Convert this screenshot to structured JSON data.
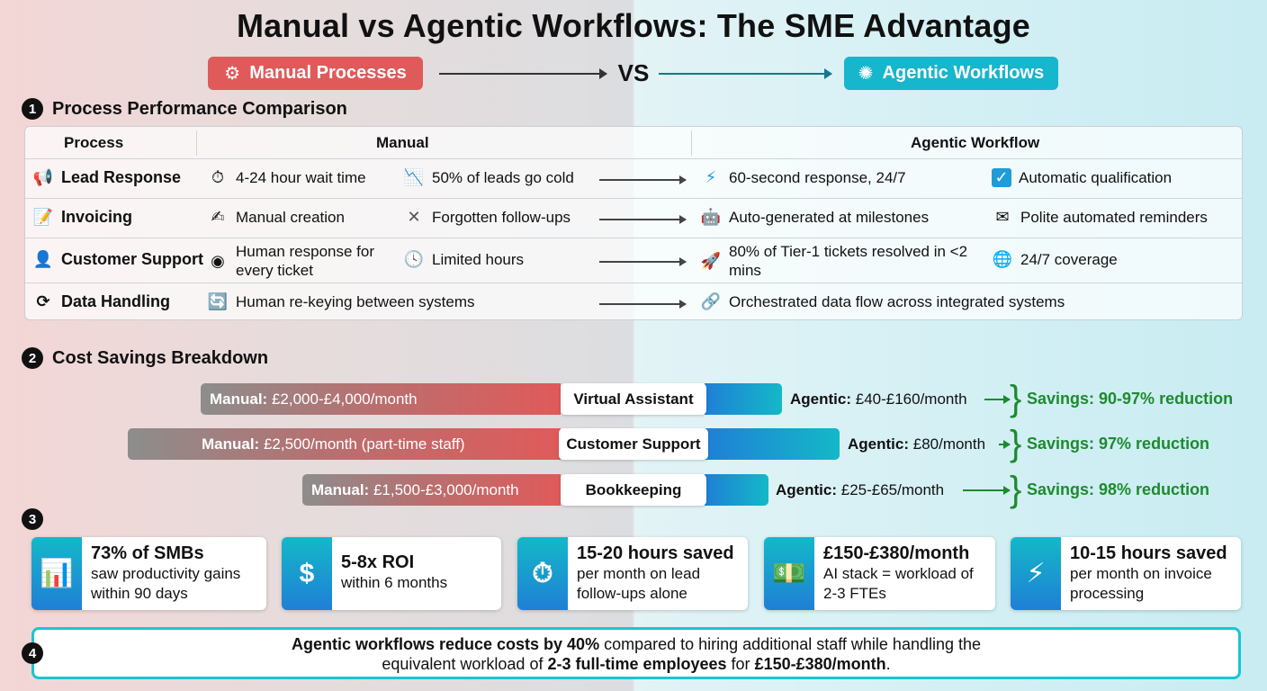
{
  "title": "Manual vs Agentic Workflows: The SME Advantage",
  "header": {
    "manual_label": "Manual Processes",
    "vs": "VS",
    "agentic_label": "Agentic Workflows"
  },
  "section1": {
    "number": "1",
    "title": "Process Performance Comparison",
    "headers": {
      "process": "Process",
      "manual": "Manual",
      "agentic": "Agentic Workflow"
    },
    "rows": [
      {
        "process": "Lead Response",
        "m1": "4-24 hour wait time",
        "m2": "50% of leads go cold",
        "a1": "60-second response, 24/7",
        "a2": "Automatic qualification"
      },
      {
        "process": "Invoicing",
        "m1": "Manual creation",
        "m2": "Forgotten follow-ups",
        "a1": "Auto-generated at milestones",
        "a2": "Polite automated reminders"
      },
      {
        "process": "Customer Support",
        "m1": "Human response for every ticket",
        "m2": "Limited hours",
        "a1": "80% of Tier-1 tickets resolved in <2 mins",
        "a2": "24/7 coverage"
      },
      {
        "process": "Data Handling",
        "m1": "Human re-keying between systems",
        "a1": "Orchestrated data flow across integrated systems"
      }
    ]
  },
  "section2": {
    "number": "2",
    "title": "Cost Savings Breakdown",
    "manual_prefix": "Manual:",
    "agentic_prefix": "Agentic:",
    "rows": [
      {
        "label": "Virtual Assistant",
        "manual": "£2,000-£4,000/month",
        "agentic": "£40-£160/month",
        "savings": "Savings: 90-97% reduction"
      },
      {
        "label": "Customer Support",
        "manual": "£2,500/month (part-time staff)",
        "agentic": "£80/month",
        "savings": "Savings: 97% reduction"
      },
      {
        "label": "Bookkeeping",
        "manual": "£1,500-£3,000/month",
        "agentic": "£25-£65/month",
        "savings": "Savings: 98% reduction"
      }
    ]
  },
  "section3": {
    "number": "3",
    "cards": [
      {
        "icon": "bar-chart-icon",
        "title": "73% of SMBs",
        "text": "saw productivity gains within 90 days"
      },
      {
        "icon": "money-bag-icon",
        "title": "5-8x ROI",
        "text": "within 6 months"
      },
      {
        "icon": "stopwatch-icon",
        "title": "15-20 hours saved",
        "text": "per month on lead follow-ups alone"
      },
      {
        "icon": "cash-icon",
        "title": "£150-£380/month",
        "text": "AI stack = workload of 2-3 FTEs"
      },
      {
        "icon": "lightning-icon",
        "title": "10-15 hours saved",
        "text": "per month on invoice processing"
      }
    ]
  },
  "section4": {
    "number": "4",
    "s1_bold": "Agentic workflows reduce costs by 40%",
    "s1_rest": " compared to hiring additional staff while handling the",
    "s2_pre": "equivalent workload of ",
    "s2_bold1": "2-3 full-time employees",
    "s2_mid": " for ",
    "s2_bold2": "£150-£380/month",
    "s2_end": "."
  },
  "colors": {
    "manual": "#e05a5a",
    "agentic": "#16b6cc",
    "savings": "#1e8a2e"
  }
}
